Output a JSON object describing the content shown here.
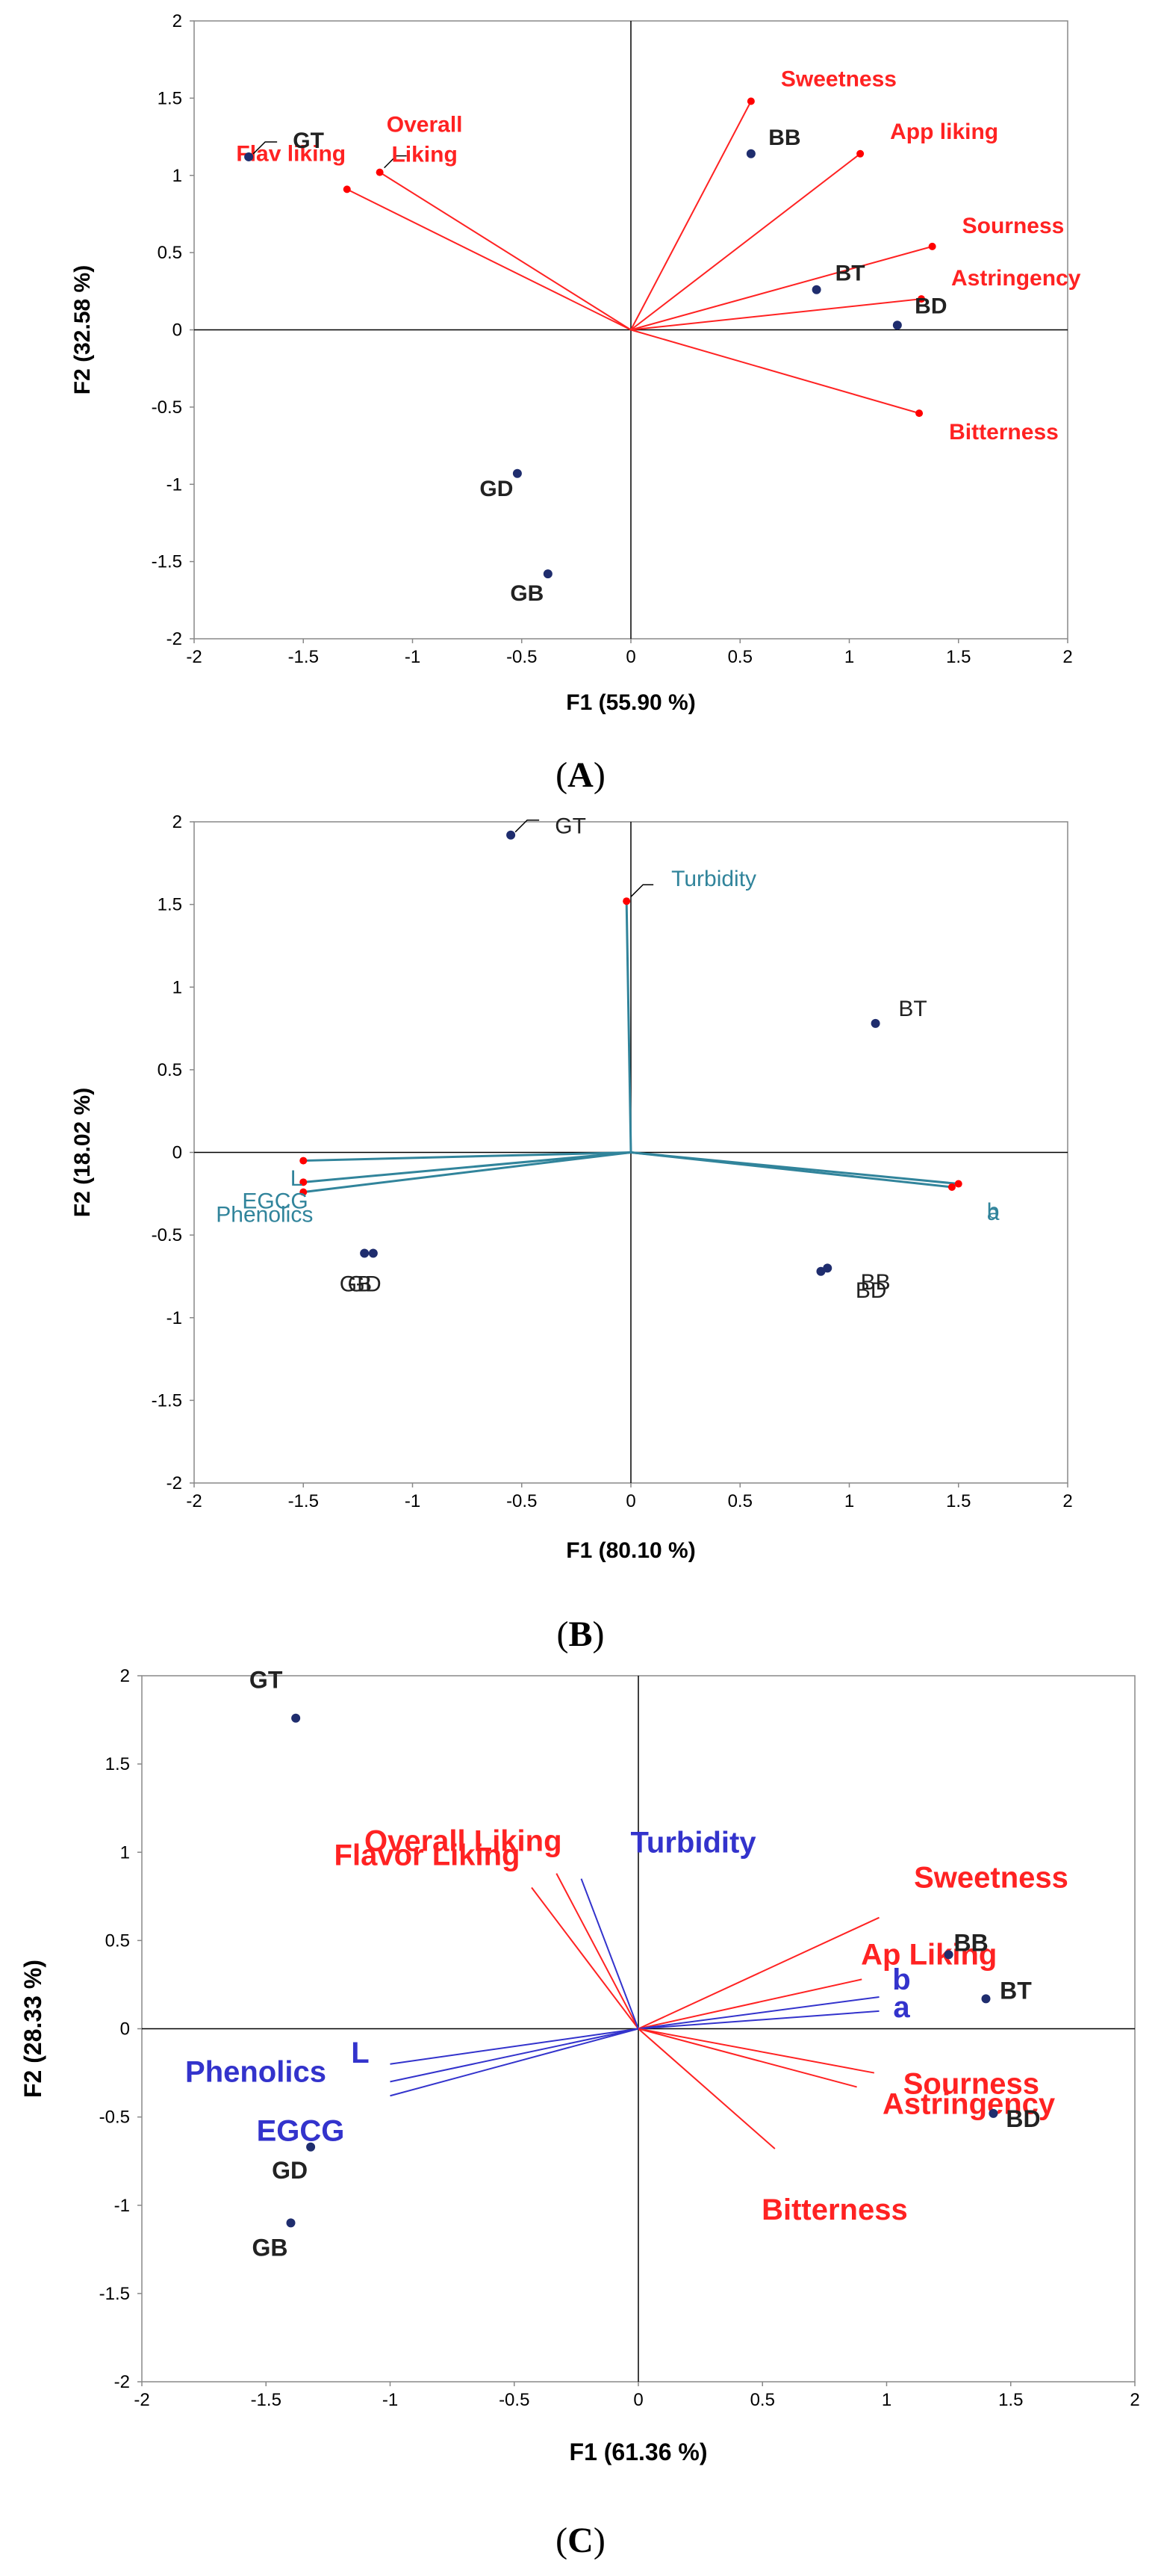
{
  "colors": {
    "liking": "#ff2222",
    "physchem_b": "#31849b",
    "physchem_c": "#3333cc",
    "point": "#1f2d6e",
    "axis": "#000000"
  },
  "chart_data": [
    {
      "type": "scatter",
      "subtype": "biplot",
      "caption": "A",
      "xlabel": "F1 (55.90 %)",
      "ylabel": "F2 (32.58 %)",
      "xlim": [
        -2,
        2
      ],
      "ylim": [
        -2,
        2
      ],
      "xticks": [
        "-2",
        "-1.5",
        "-1",
        "-0.5",
        "0",
        "0.5",
        "1",
        "1.5",
        "2"
      ],
      "yticks": [
        "2",
        "1.5",
        "1",
        "0.5",
        "0",
        "-0.5",
        "-1",
        "-1.5",
        "-2"
      ],
      "observations": [
        {
          "label": "GT",
          "x": -1.75,
          "y": 1.12,
          "leader": true
        },
        {
          "label": "BB",
          "x": 0.55,
          "y": 1.14
        },
        {
          "label": "BT",
          "x": 0.85,
          "y": 0.26
        },
        {
          "label": "BD",
          "x": 1.22,
          "y": 0.03
        },
        {
          "label": "GD",
          "x": -0.52,
          "y": -0.93
        },
        {
          "label": "GB",
          "x": -0.38,
          "y": -1.58
        }
      ],
      "variables": [
        {
          "label": "Sweetness",
          "x": 0.55,
          "y": 1.48,
          "color": "liking"
        },
        {
          "label": "App liking",
          "x": 1.05,
          "y": 1.14,
          "color": "liking"
        },
        {
          "label": "Sourness",
          "x": 1.38,
          "y": 0.54,
          "color": "liking"
        },
        {
          "label": "Astringency",
          "x": 1.33,
          "y": 0.2,
          "color": "liking"
        },
        {
          "label": "Bitterness",
          "x": 1.32,
          "y": -0.54,
          "color": "liking"
        },
        {
          "label": "Flav liking",
          "x": -1.3,
          "y": 0.91,
          "color": "liking"
        },
        {
          "label": "Overall",
          "x": -1.15,
          "y": 1.02,
          "color": "liking",
          "leader": true
        },
        {
          "label": "Liking",
          "x": -1.15,
          "y": 1.02,
          "color": "liking",
          "text_only": true
        }
      ]
    },
    {
      "type": "scatter",
      "subtype": "biplot",
      "caption": "B",
      "xlabel": "F1 (80.10 %)",
      "ylabel": "F2 (18.02 %)",
      "xlim": [
        -2,
        2
      ],
      "ylim": [
        -2,
        2
      ],
      "xticks": [
        "-2",
        "-1.5",
        "-1",
        "-0.5",
        "0",
        "0.5",
        "1",
        "1.5",
        "2"
      ],
      "yticks": [
        "2",
        "1.5",
        "1",
        "0.5",
        "0",
        "-0.5",
        "-1",
        "-1.5",
        "-2"
      ],
      "observations": [
        {
          "label": "GT",
          "x": -0.55,
          "y": 1.92,
          "leader": true
        },
        {
          "label": "BT",
          "x": 1.12,
          "y": 0.78
        },
        {
          "label": "GB",
          "x": -1.22,
          "y": -0.61
        },
        {
          "label": "GD",
          "x": -1.18,
          "y": -0.61
        },
        {
          "label": "BB",
          "x": 0.9,
          "y": -0.7
        },
        {
          "label": "BD",
          "x": 0.87,
          "y": -0.72
        }
      ],
      "observation_labels": [
        {
          "text": "GB",
          "x": -1.26,
          "y": -0.84
        },
        {
          "text": "GD",
          "x": -1.22,
          "y": -0.84
        },
        {
          "text": "BB",
          "x": 1.12,
          "y": -0.83
        },
        {
          "text": "BD",
          "x": 1.1,
          "y": -0.88
        }
      ],
      "variables": [
        {
          "label": "Turbidity",
          "x": -0.02,
          "y": 1.52,
          "color": "physchem_b",
          "leader": true
        },
        {
          "label": "b",
          "x": 1.5,
          "y": -0.19,
          "color": "physchem_b"
        },
        {
          "label": "a",
          "x": 1.47,
          "y": -0.21,
          "color": "physchem_b"
        },
        {
          "label": "L",
          "x": -1.5,
          "y": -0.05,
          "color": "physchem_b"
        },
        {
          "label": "EGCG",
          "x": -1.5,
          "y": -0.18,
          "color": "physchem_b"
        },
        {
          "label": "Phenolics",
          "x": -1.5,
          "y": -0.24,
          "color": "physchem_b"
        }
      ],
      "variable_labels": [
        {
          "text": "b",
          "x": 1.63,
          "y": -0.4
        },
        {
          "text": "a",
          "x": 1.63,
          "y": -0.41
        },
        {
          "text": "L",
          "x": -1.56,
          "y": -0.2
        },
        {
          "text": "EGCG",
          "x": -1.78,
          "y": -0.34
        },
        {
          "text": "Phenolics",
          "x": -1.9,
          "y": -0.42
        }
      ]
    },
    {
      "type": "scatter",
      "subtype": "biplot",
      "caption": "C",
      "xlabel": "F1 (61.36 %)",
      "ylabel": "F2 (28.33 %)",
      "xlim": [
        -2,
        2
      ],
      "ylim": [
        -2,
        2
      ],
      "xticks": [
        "-2",
        "-1.5",
        "-1",
        "-0.5",
        "0",
        "0.5",
        "1",
        "1.5",
        "2"
      ],
      "yticks": [
        "2",
        "1.5",
        "1",
        "0.5",
        "0",
        "-0.5",
        "-1",
        "-1.5",
        "-2"
      ],
      "observations": [
        {
          "label": "GT",
          "x": -1.38,
          "y": 1.76
        },
        {
          "label": "BB",
          "x": 1.25,
          "y": 0.42
        },
        {
          "label": "BT",
          "x": 1.4,
          "y": 0.17
        },
        {
          "label": "BD",
          "x": 1.43,
          "y": -0.48
        },
        {
          "label": "GD",
          "x": -1.32,
          "y": -0.67
        },
        {
          "label": "GB",
          "x": -1.4,
          "y": -1.1
        }
      ],
      "variables": [
        {
          "label": "Overall Liking",
          "x": -0.33,
          "y": 0.88,
          "color": "liking"
        },
        {
          "label": "Flavor Liking",
          "x": -0.43,
          "y": 0.8,
          "color": "liking"
        },
        {
          "label": "Turbidity",
          "x": -0.23,
          "y": 0.85,
          "color": "physchem_c"
        },
        {
          "label": "Sweetness",
          "x": 0.97,
          "y": 0.63,
          "color": "liking"
        },
        {
          "label": "Ap Liking",
          "x": 0.9,
          "y": 0.28,
          "color": "liking"
        },
        {
          "label": "b",
          "x": 0.97,
          "y": 0.18,
          "color": "physchem_c"
        },
        {
          "label": "a",
          "x": 0.97,
          "y": 0.1,
          "color": "physchem_c"
        },
        {
          "label": "Sourness",
          "x": 0.95,
          "y": -0.25,
          "color": "liking"
        },
        {
          "label": "Astringency",
          "x": 0.88,
          "y": -0.33,
          "color": "liking"
        },
        {
          "label": "Bitterness",
          "x": 0.55,
          "y": -0.68,
          "color": "liking"
        },
        {
          "label": "L",
          "x": -1.0,
          "y": -0.2,
          "color": "physchem_c"
        },
        {
          "label": "Phenolics",
          "x": -1.0,
          "y": -0.3,
          "color": "physchem_c"
        },
        {
          "label": "EGCG",
          "x": -1.0,
          "y": -0.38,
          "color": "physchem_c"
        }
      ]
    }
  ]
}
